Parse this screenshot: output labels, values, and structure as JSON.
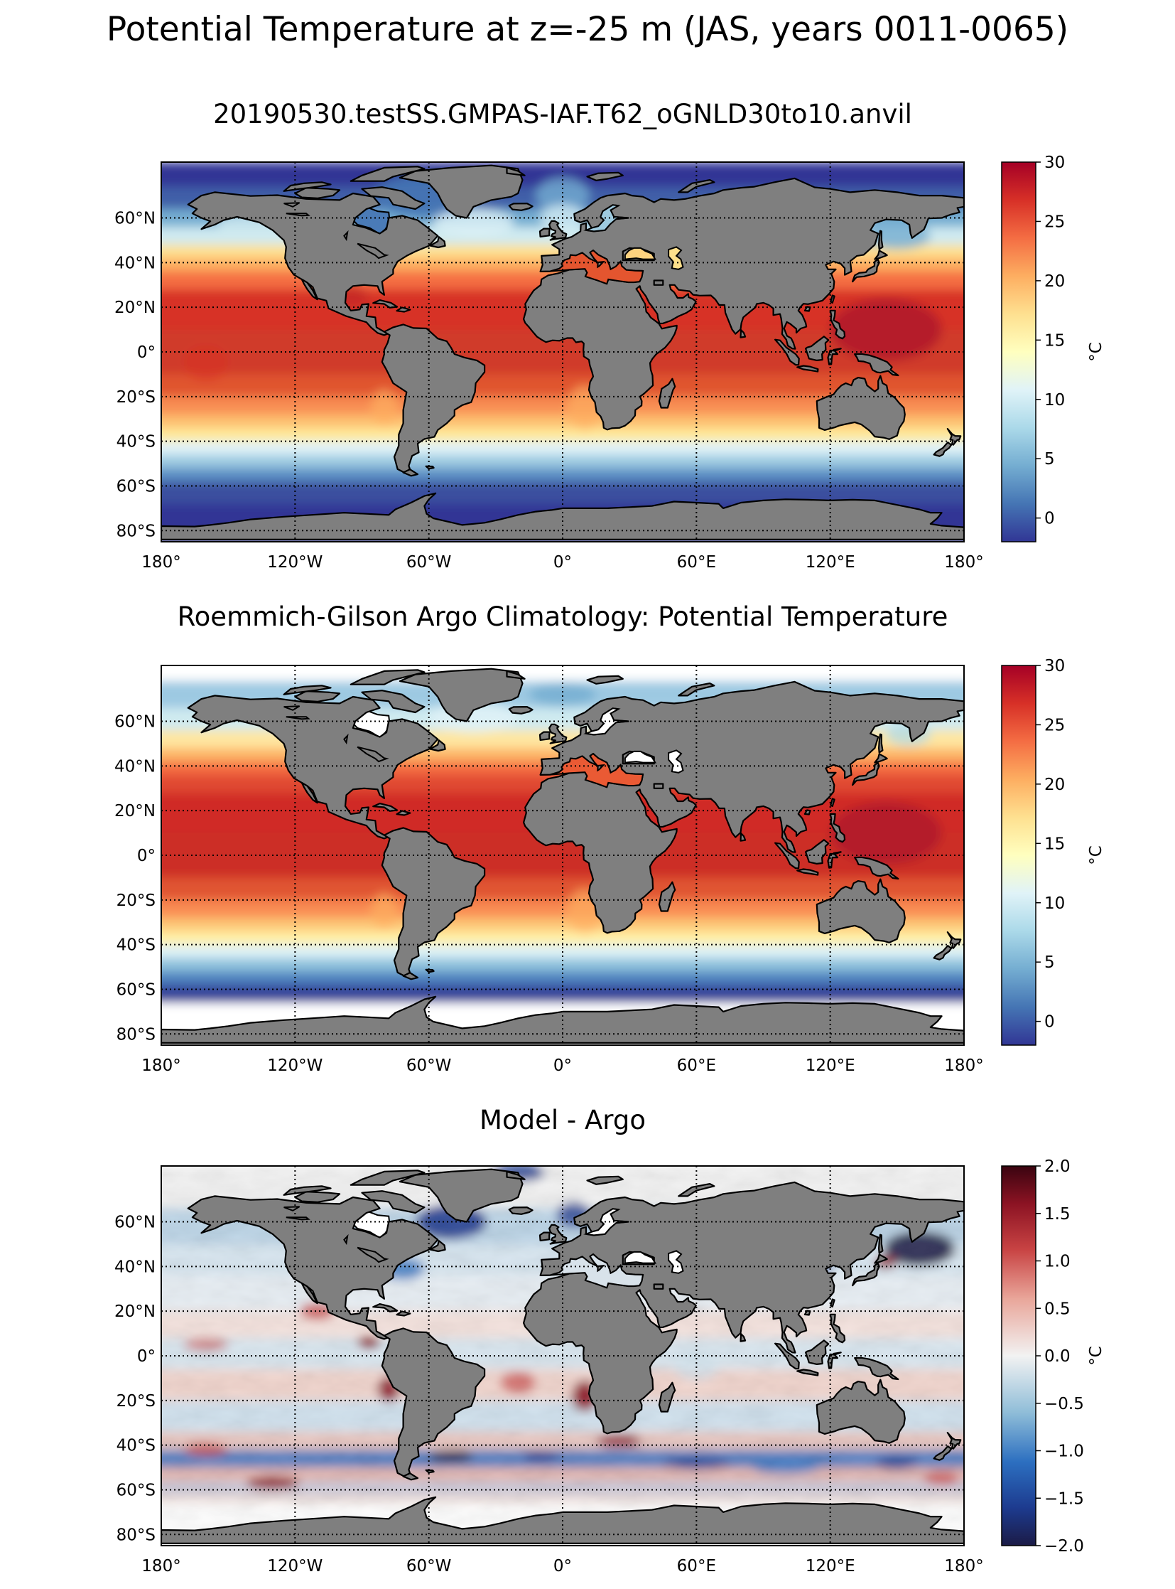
{
  "figure": {
    "title": "Potential Temperature at z=-25 m (JAS, years 0011-0065)"
  },
  "colors": {
    "land": "#7f7f7f",
    "background": "#ffffff",
    "coast": "#000000"
  },
  "chart_data": [
    {
      "type": "heatmap",
      "title": "20190530.testSS.GMPAS-IAF.T62_oGNLD30to10.anvil",
      "field": "model",
      "projection": "equirectangular",
      "xlim": [
        -180,
        180
      ],
      "ylim": [
        -85,
        85
      ],
      "x_tick_values": [
        -180,
        -120,
        -60,
        0,
        60,
        120,
        180
      ],
      "x_tick_labels": [
        "180°",
        "120°W",
        "60°W",
        "0°",
        "60°E",
        "120°E",
        "180°"
      ],
      "y_tick_values": [
        60,
        40,
        20,
        0,
        -20,
        -40,
        -60,
        -80
      ],
      "y_tick_labels": [
        "60°N",
        "40°N",
        "20°N",
        "0°",
        "20°S",
        "40°S",
        "60°S",
        "80°S"
      ],
      "grid": "dotted",
      "colormap": "RdYlBu_r",
      "colorbar": {
        "label": "°C",
        "vmin": -2,
        "vmax": 30,
        "tick_values": [
          30,
          25,
          20,
          15,
          10,
          5,
          0
        ],
        "tick_labels": [
          "30",
          "25",
          "20",
          "15",
          "10",
          "5",
          "0"
        ]
      }
    },
    {
      "type": "heatmap",
      "title": "Roemmich-Gilson Argo Climatology: Potential Temperature",
      "field": "argo",
      "projection": "equirectangular",
      "xlim": [
        -180,
        180
      ],
      "ylim": [
        -85,
        85
      ],
      "x_tick_values": [
        -180,
        -120,
        -60,
        0,
        60,
        120,
        180
      ],
      "x_tick_labels": [
        "180°",
        "120°W",
        "60°W",
        "0°",
        "60°E",
        "120°E",
        "180°"
      ],
      "y_tick_values": [
        60,
        40,
        20,
        0,
        -20,
        -40,
        -60,
        -80
      ],
      "y_tick_labels": [
        "60°N",
        "40°N",
        "20°N",
        "0°",
        "20°S",
        "40°S",
        "60°S",
        "80°S"
      ],
      "grid": "dotted",
      "colormap": "RdYlBu_r",
      "colorbar": {
        "label": "°C",
        "vmin": -2,
        "vmax": 30,
        "tick_values": [
          30,
          25,
          20,
          15,
          10,
          5,
          0
        ],
        "tick_labels": [
          "30",
          "25",
          "20",
          "15",
          "10",
          "5",
          "0"
        ]
      }
    },
    {
      "type": "heatmap",
      "title": "Model - Argo",
      "field": "difference",
      "projection": "equirectangular",
      "xlim": [
        -180,
        180
      ],
      "ylim": [
        -85,
        85
      ],
      "x_tick_values": [
        -180,
        -120,
        -60,
        0,
        60,
        120,
        180
      ],
      "x_tick_labels": [
        "180°",
        "120°W",
        "60°W",
        "0°",
        "60°E",
        "120°E",
        "180°"
      ],
      "y_tick_values": [
        60,
        40,
        20,
        0,
        -20,
        -40,
        -60,
        -80
      ],
      "y_tick_labels": [
        "60°N",
        "40°N",
        "20°N",
        "0°",
        "20°S",
        "40°S",
        "60°S",
        "80°S"
      ],
      "grid": "dotted",
      "colormap": "RdBu_r",
      "colorbar": {
        "label": "°C",
        "vmin": -2.0,
        "vmax": 2.0,
        "tick_values": [
          2.0,
          1.5,
          1.0,
          0.5,
          0.0,
          -0.5,
          -1.0,
          -1.5,
          -2.0
        ],
        "tick_labels": [
          "2.0",
          "1.5",
          "1.0",
          "0.5",
          "0.0",
          "−0.5",
          "−1.0",
          "−1.5",
          "−2.0"
        ]
      }
    }
  ]
}
